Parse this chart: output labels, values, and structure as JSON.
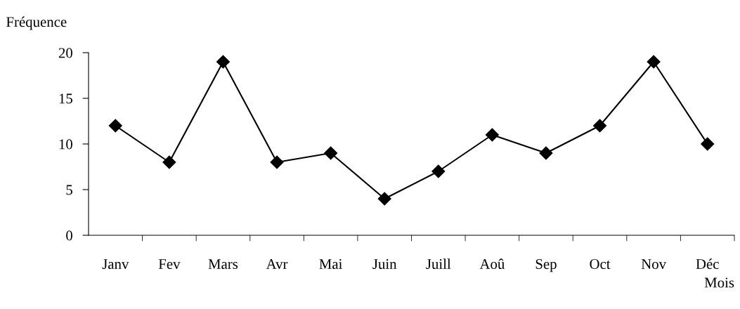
{
  "chart_data": {
    "type": "line",
    "xlabel": "Mois",
    "ylabel": "Fréquence",
    "categories": [
      "Janv",
      "Fev",
      "Mars",
      "Avr",
      "Mai",
      "Juin",
      "Juill",
      "Aoû",
      "Sep",
      "Oct",
      "Nov",
      "Déc"
    ],
    "series": [
      {
        "color": "#000000",
        "values": [
          12,
          8,
          19,
          8,
          9,
          4,
          7,
          11,
          9,
          12,
          19,
          10
        ]
      }
    ],
    "ylim": [
      0,
      20
    ],
    "yticks": [
      0,
      5,
      10,
      15,
      20
    ],
    "marker": "diamond",
    "line_style": "solid",
    "grid": false,
    "legend": false
  }
}
